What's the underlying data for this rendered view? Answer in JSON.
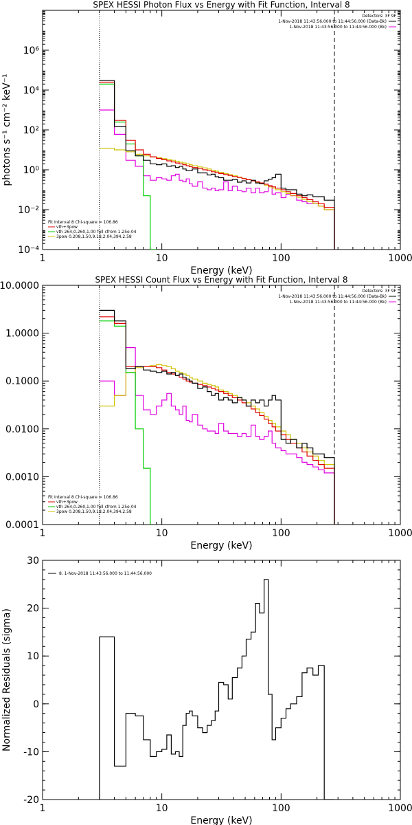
{
  "panels": [
    {
      "title": "SPEX HESSI Photon Flux vs Energy with Fit Function, Interval 8",
      "xlabel": "Energy (keV)",
      "ylabel": "photons s⁻¹ cm⁻² keV⁻¹",
      "x_ticks": [
        "1",
        "10",
        "100",
        "1000"
      ],
      "y_ticks": [
        "10⁻⁴",
        "10⁻²",
        "10⁰",
        "10²",
        "10⁴",
        "10⁶"
      ],
      "legend_right": [
        "Detectors: 3F 9F",
        "1-Nov-2018 11:43:56.000 to 11:44:56.000 (Data-Bk)",
        "1-Nov-2018 11:43:56.000 to 11:44:56.000 (Bk)"
      ],
      "legend_left": [
        "Fit Interval 8   Chi-square = 106.86",
        "vth+3pow",
        "vth 264,0.260,1.00  full cfrom 1.25e-04",
        "3pow 0.208,1.50,9.18,2.04,394,2.58"
      ]
    },
    {
      "title": "SPEX HESSI Count Flux vs Energy with Fit Function, Interval 8",
      "xlabel": "Energy (keV)",
      "ylabel": "",
      "x_ticks": [
        "1",
        "10",
        "100",
        "1000"
      ],
      "y_ticks": [
        "0.0001",
        "0.0010",
        "0.0100",
        "0.1000",
        "1.0000",
        "10.0000"
      ],
      "legend_right": [
        "Detectors: 3F 9F",
        "1-Nov-2018 11:43:56.000 to 11:44:56.000 (Data-Bk)",
        "1-Nov-2018 11:43:56.000 to 11:44:56.000 (Bk)"
      ],
      "legend_left": [
        "Fit Interval 8   Chi-square = 106.86",
        "vth+3pow",
        "vth 264,0.260,1.00  full cfrom 1.25e-04",
        "3pow 0.208,1.50,9.18,2.04,394,2.58"
      ]
    },
    {
      "title": "",
      "xlabel": "Energy (keV)",
      "ylabel": "Normalized Residuals (sigma)",
      "x_ticks": [
        "1",
        "10",
        "100",
        "1000"
      ],
      "y_ticks": [
        "-20",
        "-10",
        "0",
        "10",
        "20",
        "30"
      ],
      "legend_right": [],
      "legend_left": [
        "8. 1-Nov-2018 11:43:56.000 to 11:44:56.000"
      ]
    }
  ],
  "colors": {
    "data": "#000000",
    "background": "#e000e0",
    "total_fit": "#e00000",
    "thermal": "#00d000",
    "power": "#d0c000"
  },
  "chart_data": [
    {
      "type": "line",
      "title": "SPEX HESSI Photon Flux vs Energy with Fit Function, Interval 8",
      "xlabel": "Energy (keV)",
      "ylabel": "photons s^-1 cm^-2 keV^-1",
      "xscale": "log",
      "yscale": "log",
      "xlim": [
        1,
        1000
      ],
      "ylim": [
        0.0001,
        100000000
      ],
      "edges": [
        3,
        4,
        5,
        6,
        7,
        8,
        9,
        10,
        11,
        12,
        13,
        14,
        15,
        16,
        17,
        18,
        20,
        22,
        24,
        26,
        28,
        30,
        33,
        36,
        39,
        43,
        47,
        51,
        56,
        61,
        66,
        72,
        78,
        84,
        90,
        100,
        110,
        120,
        135,
        150,
        165,
        185,
        205,
        230,
        280
      ],
      "vlines": [
        {
          "x": 3,
          "style": "dotted"
        },
        {
          "x": 280,
          "style": "dashed"
        }
      ],
      "series": [
        {
          "name": "Data-Bk",
          "values": [
            30000,
            150,
            9,
            5,
            3,
            2,
            1.8,
            2,
            1.5,
            1.6,
            1.3,
            1.5,
            1.1,
            0.9,
            0.9,
            1.1,
            0.7,
            0.7,
            0.55,
            0.6,
            0.45,
            0.4,
            0.3,
            0.3,
            0.33,
            0.24,
            0.28,
            0.22,
            0.3,
            0.22,
            0.2,
            0.28,
            0.34,
            0.4,
            0.6,
            0.12,
            0.1,
            0.1,
            0.06,
            0.05,
            0.055,
            0.045,
            0.045,
            0.03
          ]
        },
        {
          "name": "Bk",
          "values": [
            1000,
            60,
            3,
            1.5,
            0.5,
            0.3,
            0.4,
            0.35,
            0.3,
            0.5,
            0.6,
            0.3,
            0.25,
            0.35,
            0.2,
            0.15,
            0.25,
            0.12,
            0.1,
            0.12,
            0.09,
            0.1,
            0.25,
            0.09,
            0.15,
            0.09,
            0.08,
            0.12,
            0.07,
            0.12,
            0.07,
            0.08,
            0.15,
            0.06,
            0.07,
            0.04,
            0.06,
            0.05,
            0.03,
            0.025,
            0.02,
            0.02,
            0.015,
            0.01
          ]
        },
        {
          "name": "vth+3pow",
          "values": [
            25000,
            300,
            30,
            10,
            6,
            4.5,
            3.7,
            3.2,
            2.8,
            2.5,
            2.2,
            2,
            1.8,
            1.6,
            1.45,
            1.3,
            1.15,
            1.0,
            0.9,
            0.8,
            0.72,
            0.65,
            0.58,
            0.52,
            0.46,
            0.41,
            0.36,
            0.32,
            0.28,
            0.25,
            0.22,
            0.19,
            0.16,
            0.14,
            0.12,
            0.1,
            0.08,
            0.065,
            0.05,
            0.04,
            0.032,
            0.025,
            0.02,
            0.013
          ]
        },
        {
          "name": "vth",
          "values": [
            20000,
            250,
            20,
            5,
            0.05,
            0.0001,
            1e-05
          ]
        },
        {
          "name": "3pow",
          "values": [
            12,
            10,
            8,
            6,
            5,
            4.5,
            4,
            3.6,
            3.3,
            3,
            2.7,
            2.4,
            2.2,
            2,
            1.8,
            1.6,
            1.4,
            1.25,
            1.1,
            0.95,
            0.85,
            0.75,
            0.65,
            0.57,
            0.5,
            0.43,
            0.37,
            0.32,
            0.28,
            0.24,
            0.2,
            0.17,
            0.14,
            0.12,
            0.1,
            0.08,
            0.065,
            0.052,
            0.042,
            0.033,
            0.026,
            0.02,
            0.015,
            0.01
          ]
        }
      ]
    },
    {
      "type": "line",
      "title": "SPEX HESSI Count Flux vs Energy with Fit Function, Interval 8",
      "xlabel": "Energy (keV)",
      "xscale": "log",
      "yscale": "log",
      "xlim": [
        1,
        1000
      ],
      "ylim": [
        0.0001,
        10
      ],
      "edges": [
        3,
        4,
        5,
        6,
        7,
        8,
        9,
        10,
        11,
        12,
        13,
        14,
        15,
        16,
        17,
        18,
        20,
        22,
        24,
        26,
        28,
        30,
        33,
        36,
        39,
        43,
        47,
        51,
        56,
        61,
        66,
        72,
        78,
        84,
        90,
        100,
        110,
        120,
        135,
        150,
        165,
        185,
        205,
        230,
        280
      ],
      "vlines": [
        {
          "x": 3,
          "style": "dotted"
        },
        {
          "x": 280,
          "style": "dashed"
        }
      ],
      "series": [
        {
          "name": "Data-Bk",
          "values": [
            3,
            1.8,
            0.18,
            0.2,
            0.17,
            0.16,
            0.15,
            0.16,
            0.14,
            0.15,
            0.13,
            0.14,
            0.12,
            0.11,
            0.1,
            0.09,
            0.07,
            0.075,
            0.06,
            0.05,
            0.055,
            0.04,
            0.045,
            0.04,
            0.035,
            0.045,
            0.04,
            0.03,
            0.04,
            0.035,
            0.04,
            0.03,
            0.04,
            0.05,
            0.04,
            0.006,
            0.005,
            0.006,
            0.004,
            0.005,
            0.004,
            0.003,
            0.003,
            0.0025
          ]
        },
        {
          "name": "Bk",
          "values": [
            0.1,
            0.05,
            0.5,
            0.05,
            0.025,
            0.02,
            0.03,
            0.04,
            0.055,
            0.03,
            0.025,
            0.02,
            0.03,
            0.015,
            0.014,
            0.02,
            0.012,
            0.01,
            0.009,
            0.009,
            0.008,
            0.013,
            0.009,
            0.008,
            0.008,
            0.007,
            0.008,
            0.007,
            0.012,
            0.007,
            0.006,
            0.007,
            0.009,
            0.005,
            0.004,
            0.0035,
            0.003,
            0.003,
            0.0025,
            0.002,
            0.0018,
            0.0016,
            0.0014,
            0.0012
          ]
        },
        {
          "name": "vth+3pow",
          "values": [
            2.2,
            1.6,
            0.2,
            0.2,
            0.2,
            0.2,
            0.19,
            0.17,
            0.15,
            0.14,
            0.13,
            0.12,
            0.11,
            0.1,
            0.095,
            0.09,
            0.085,
            0.08,
            0.075,
            0.07,
            0.065,
            0.06,
            0.055,
            0.05,
            0.045,
            0.04,
            0.035,
            0.03,
            0.026,
            0.022,
            0.019,
            0.016,
            0.013,
            0.011,
            0.009,
            0.0075,
            0.006,
            0.005,
            0.004,
            0.0033,
            0.0027,
            0.0022,
            0.0018,
            0.0015
          ]
        },
        {
          "name": "vth",
          "values": [
            1.8,
            1.4,
            0.15,
            0.01,
            0.0015,
            1e-05
          ]
        },
        {
          "name": "3pow",
          "values": [
            0.03,
            0.05,
            0.15,
            0.19,
            0.2,
            0.21,
            0.22,
            0.21,
            0.2,
            0.18,
            0.16,
            0.15,
            0.14,
            0.13,
            0.12,
            0.11,
            0.1,
            0.09,
            0.085,
            0.08,
            0.075,
            0.065,
            0.06,
            0.055,
            0.05,
            0.045,
            0.04,
            0.035,
            0.03,
            0.026,
            0.022,
            0.018,
            0.015,
            0.013,
            0.011,
            0.009,
            0.0075,
            0.006,
            0.005,
            0.004,
            0.0033,
            0.0027,
            0.0022,
            0.0018
          ]
        }
      ]
    },
    {
      "type": "line",
      "xlabel": "Energy (keV)",
      "ylabel": "Normalized Residuals (sigma)",
      "xscale": "log",
      "xlim": [
        1,
        1000
      ],
      "ylim": [
        -20,
        30
      ],
      "edges": [
        3,
        4,
        5,
        6,
        7,
        8,
        9,
        10,
        11,
        12,
        13,
        14,
        15,
        16,
        17,
        18,
        20,
        22,
        24,
        26,
        28,
        30,
        33,
        36,
        39,
        43,
        47,
        51,
        56,
        61,
        66,
        72,
        78,
        84,
        90,
        100,
        110,
        120,
        135,
        150,
        165,
        185,
        205,
        230,
        280
      ],
      "series": [
        {
          "name": "8. 1-Nov-2018 11:43:56.000 to 11:44:56.000",
          "values": [
            14,
            -13,
            -2,
            -2.5,
            -7.5,
            -11,
            -10,
            -9.5,
            -6.5,
            -10.5,
            -10,
            -11,
            -4.5,
            -2,
            -1.5,
            -2.5,
            -5,
            -6,
            -4.5,
            -3.5,
            -1.5,
            4.5,
            4,
            1,
            5.5,
            7.5,
            10,
            13.5,
            15,
            21,
            19,
            26,
            2,
            -7.5,
            -5,
            -3,
            -1,
            0,
            1.5,
            6.5,
            7.5,
            6,
            8,
            -20
          ]
        }
      ]
    }
  ]
}
